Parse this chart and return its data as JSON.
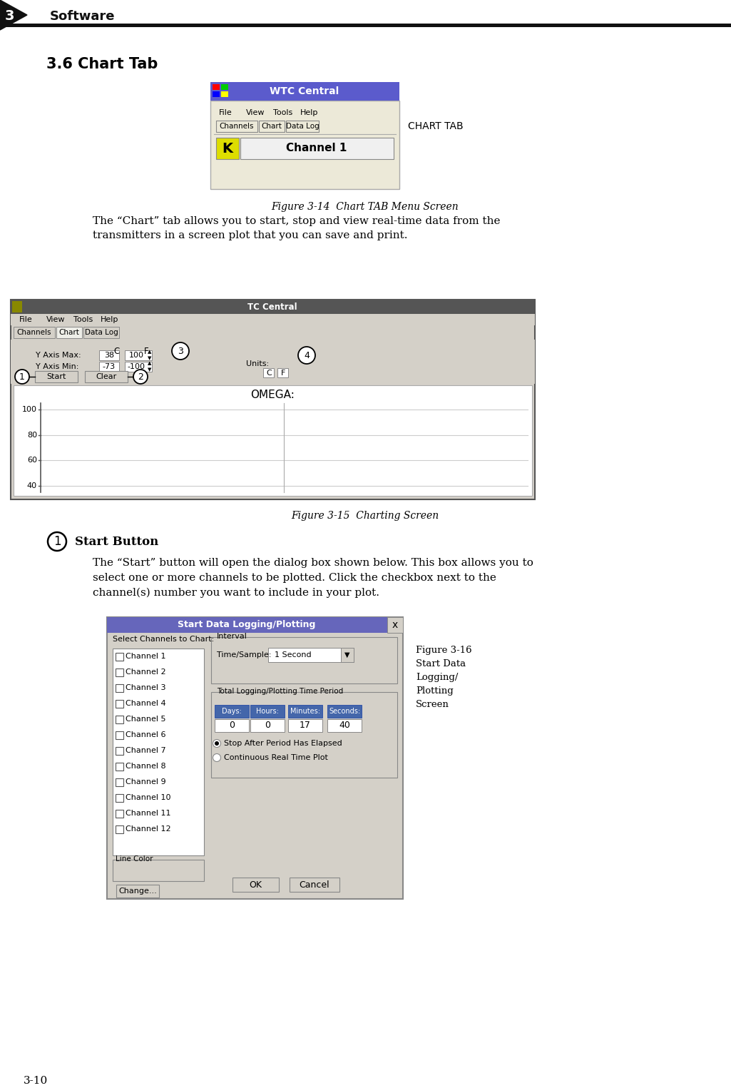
{
  "page_bg": "#ffffff",
  "header_number": "3",
  "header_text": "Software",
  "section_title": "3.6 Chart Tab",
  "figure3_14_caption": "Figure 3-14  Chart TAB Menu Screen",
  "figure3_15_caption": "Figure 3-15  Charting Screen",
  "figure3_16_caption_lines": [
    "Figure 3-16",
    "Start Data",
    "Logging/",
    "Plotting",
    "Screen"
  ],
  "para1_lines": [
    "The “Chart” tab allows you to start, stop and view real-time data from the",
    "transmitters in a screen plot that you can save and print."
  ],
  "circle1_label": "Start Button",
  "para2_lines": [
    "The “Start” button will open the dialog box shown below. This box allows you to",
    "select one or more channels to be plotted. Click the checkbox next to the",
    "channel(s) number you want to include in your plot."
  ],
  "footer_text": "3-10",
  "chart_tab_label": "CHART TAB",
  "wtc_title_bg": "#5b5bcc",
  "wtc_title_text": "WTC Central",
  "tc_title_bg": "#666666",
  "tc_title_text": "TC Central",
  "start_dlg_title_bg": "#6666bb",
  "start_dlg_title_text": "Start Data Logging/Plotting",
  "channels": [
    "Channel 1",
    "Channel 2",
    "Channel 3",
    "Channel 4",
    "Channel 5",
    "Channel 6",
    "Channel 7",
    "Channel 8",
    "Channel 9",
    "Channel 10",
    "Channel 11",
    "Channel 12"
  ],
  "days_hours_min_sec_labels": [
    "Days:",
    "Hours:",
    "Minutes:",
    "Seconds:"
  ],
  "days_hours_min_sec_values": [
    "0",
    "0",
    "17",
    "40"
  ],
  "ctrl_bg": "#d4d0c8",
  "white": "#ffffff",
  "border_color": "#888888",
  "dark_border": "#555555"
}
